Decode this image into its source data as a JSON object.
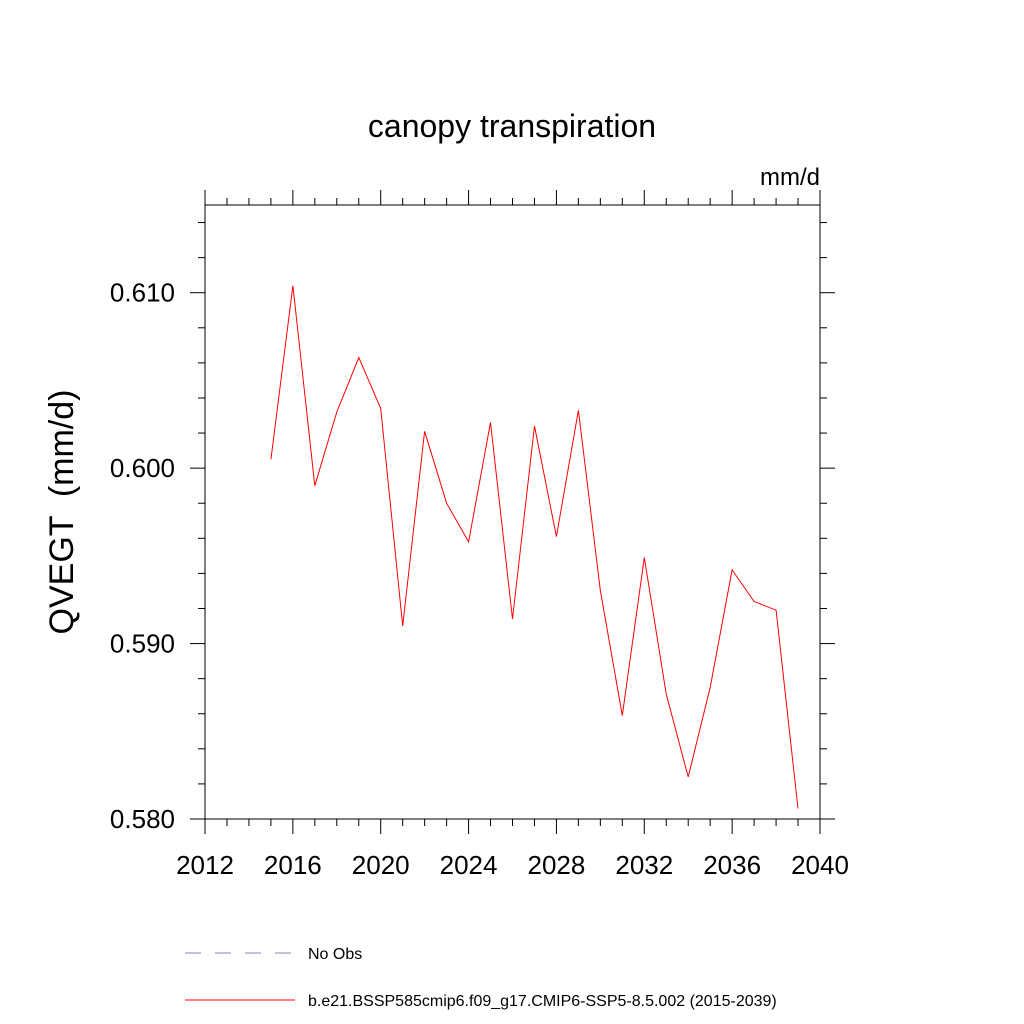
{
  "chart_data": {
    "type": "line",
    "title": "canopy transpiration",
    "units_label": "mm/d",
    "ylabel": "QVEGT  (mm/d)",
    "xlabel": "",
    "xlim": [
      2012,
      2040
    ],
    "ylim": [
      0.58,
      0.615
    ],
    "x_ticks": [
      2012,
      2016,
      2020,
      2024,
      2028,
      2032,
      2036,
      2040
    ],
    "y_ticks": [
      0.58,
      0.59,
      0.6,
      0.61
    ],
    "y_tick_labels": [
      "0.580",
      "0.590",
      "0.600",
      "0.610"
    ],
    "grid": false,
    "x": [
      2015,
      2016,
      2017,
      2018,
      2019,
      2020,
      2021,
      2022,
      2023,
      2024,
      2025,
      2026,
      2027,
      2028,
      2029,
      2030,
      2031,
      2032,
      2033,
      2034,
      2035,
      2036,
      2037,
      2038,
      2039
    ],
    "series": [
      {
        "name": "b.e21.BSSP585cmip6.f09_g17.CMIP6-SSP5-8.5.002 (2015-2039)",
        "color": "#ff0000",
        "style": "solid",
        "values": [
          0.6005,
          0.6104,
          0.599,
          0.6032,
          0.6063,
          0.6034,
          0.591,
          0.6021,
          0.598,
          0.5958,
          0.6026,
          0.5914,
          0.6024,
          0.5961,
          0.6033,
          0.593,
          0.5859,
          0.5949,
          0.5871,
          0.5824,
          0.5875,
          0.5942,
          0.5924,
          0.5919,
          0.5806
        ]
      }
    ],
    "legend": [
      {
        "label": "No Obs",
        "color": "#8080c0",
        "style": "dashed"
      },
      {
        "label": "b.e21.BSSP585cmip6.f09_g17.CMIP6-SSP5-8.5.002 (2015-2039)",
        "color": "#ff0000",
        "style": "solid"
      }
    ],
    "legend_position": "bottom"
  }
}
